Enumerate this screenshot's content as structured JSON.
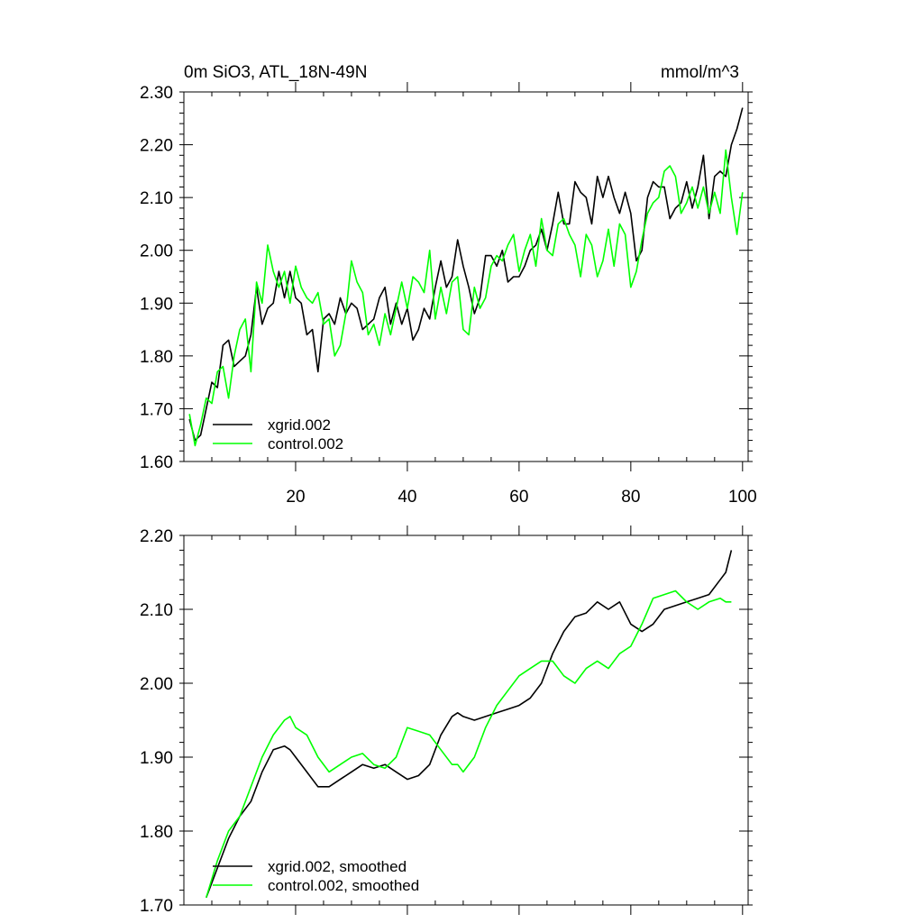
{
  "chart_data": [
    {
      "type": "line",
      "title": "0m SiO3, ATL_18N-49N",
      "units": "mmol/m^3",
      "xlabel": "",
      "ylabel": "",
      "xlim": [
        0,
        101
      ],
      "ylim": [
        1.6,
        2.3
      ],
      "xticks": [
        20,
        40,
        60,
        80,
        100
      ],
      "xtick_labels": [
        "20",
        "40",
        "60",
        "80",
        "100"
      ],
      "yticks": [
        1.6,
        1.7,
        1.8,
        1.9,
        2.0,
        2.1,
        2.2,
        2.3
      ],
      "ytick_labels": [
        "1.60",
        "1.70",
        "1.80",
        "1.90",
        "2.00",
        "2.10",
        "2.20",
        "2.30"
      ],
      "legend_position": "bottom-left",
      "series": [
        {
          "name": "xgrid.002",
          "color": "#000000",
          "x": [
            1,
            2,
            3,
            4,
            5,
            6,
            7,
            8,
            9,
            10,
            11,
            12,
            13,
            14,
            15,
            16,
            17,
            18,
            19,
            20,
            21,
            22,
            23,
            24,
            25,
            26,
            27,
            28,
            29,
            30,
            31,
            32,
            33,
            34,
            35,
            36,
            37,
            38,
            39,
            40,
            41,
            42,
            43,
            44,
            45,
            46,
            47,
            48,
            49,
            50,
            51,
            52,
            53,
            54,
            55,
            56,
            57,
            58,
            59,
            60,
            61,
            62,
            63,
            64,
            65,
            66,
            67,
            68,
            69,
            70,
            71,
            72,
            73,
            74,
            75,
            76,
            77,
            78,
            79,
            80,
            81,
            82,
            83,
            84,
            85,
            86,
            87,
            88,
            89,
            90,
            91,
            92,
            93,
            94,
            95,
            96,
            97,
            98,
            99,
            100
          ],
          "values": [
            1.68,
            1.64,
            1.65,
            1.7,
            1.75,
            1.74,
            1.82,
            1.83,
            1.78,
            1.79,
            1.8,
            1.84,
            1.93,
            1.86,
            1.89,
            1.9,
            1.96,
            1.91,
            1.96,
            1.91,
            1.9,
            1.84,
            1.85,
            1.77,
            1.87,
            1.88,
            1.86,
            1.91,
            1.88,
            1.9,
            1.89,
            1.85,
            1.86,
            1.87,
            1.91,
            1.93,
            1.86,
            1.9,
            1.86,
            1.89,
            1.83,
            1.85,
            1.89,
            1.87,
            1.93,
            1.98,
            1.93,
            1.95,
            2.02,
            1.97,
            1.93,
            1.88,
            1.91,
            1.99,
            1.99,
            1.97,
            2.0,
            1.94,
            1.95,
            1.95,
            1.97,
            2.0,
            2.01,
            2.04,
            2.0,
            2.05,
            2.11,
            2.05,
            2.05,
            2.13,
            2.11,
            2.1,
            2.05,
            2.14,
            2.1,
            2.14,
            2.1,
            2.07,
            2.11,
            2.07,
            1.98,
            2.0,
            2.1,
            2.13,
            2.12,
            2.12,
            2.06,
            2.08,
            2.09,
            2.13,
            2.08,
            2.12,
            2.18,
            2.06,
            2.14,
            2.15,
            2.14,
            2.2,
            2.23,
            2.27
          ]
        },
        {
          "name": "control.002",
          "color": "#00ff00",
          "x": [
            1,
            2,
            3,
            4,
            5,
            6,
            7,
            8,
            9,
            10,
            11,
            12,
            13,
            14,
            15,
            16,
            17,
            18,
            19,
            20,
            21,
            22,
            23,
            24,
            25,
            26,
            27,
            28,
            29,
            30,
            31,
            32,
            33,
            34,
            35,
            36,
            37,
            38,
            39,
            40,
            41,
            42,
            43,
            44,
            45,
            46,
            47,
            48,
            49,
            50,
            51,
            52,
            53,
            54,
            55,
            56,
            57,
            58,
            59,
            60,
            61,
            62,
            63,
            64,
            65,
            66,
            67,
            68,
            69,
            70,
            71,
            72,
            73,
            74,
            75,
            76,
            77,
            78,
            79,
            80,
            81,
            82,
            83,
            84,
            85,
            86,
            87,
            88,
            89,
            90,
            91,
            92,
            93,
            94,
            95,
            96,
            97,
            98,
            99,
            100
          ],
          "values": [
            1.69,
            1.63,
            1.67,
            1.72,
            1.71,
            1.77,
            1.78,
            1.72,
            1.8,
            1.85,
            1.87,
            1.77,
            1.94,
            1.9,
            2.01,
            1.96,
            1.93,
            1.96,
            1.9,
            1.97,
            1.93,
            1.91,
            1.9,
            1.92,
            1.86,
            1.87,
            1.8,
            1.82,
            1.88,
            1.98,
            1.94,
            1.92,
            1.84,
            1.86,
            1.82,
            1.88,
            1.84,
            1.89,
            1.94,
            1.89,
            1.95,
            1.94,
            1.92,
            2.0,
            1.87,
            1.93,
            1.88,
            1.94,
            1.95,
            1.85,
            1.84,
            1.93,
            1.89,
            1.91,
            1.97,
            1.99,
            1.98,
            2.01,
            2.03,
            1.96,
            2.0,
            2.03,
            1.97,
            2.06,
            2.0,
            1.99,
            2.05,
            2.06,
            2.03,
            2.01,
            1.95,
            2.03,
            2.01,
            1.95,
            1.98,
            2.04,
            1.97,
            2.05,
            2.03,
            1.93,
            1.96,
            2.02,
            2.07,
            2.09,
            2.1,
            2.15,
            2.16,
            2.14,
            2.07,
            2.09,
            2.12,
            2.08,
            2.12,
            2.07,
            2.11,
            2.07,
            2.19,
            2.1,
            2.03,
            2.11
          ]
        }
      ]
    },
    {
      "type": "line",
      "title": "",
      "xlabel": "",
      "ylabel": "",
      "xlim": [
        0,
        101
      ],
      "ylim": [
        1.7,
        2.2
      ],
      "xticks": [
        20,
        40,
        60,
        80,
        100
      ],
      "yticks": [
        1.7,
        1.8,
        1.9,
        2.0,
        2.1,
        2.2
      ],
      "ytick_labels": [
        "1.70",
        "1.80",
        "1.90",
        "2.00",
        "2.10",
        "2.20"
      ],
      "legend_position": "bottom-left",
      "series": [
        {
          "name": "xgrid.002, smoothed",
          "color": "#000000",
          "x": [
            4,
            6,
            8,
            10,
            11,
            12,
            14,
            16,
            18,
            19,
            20,
            22,
            24,
            26,
            28,
            30,
            32,
            34,
            36,
            38,
            40,
            42,
            44,
            46,
            48,
            49,
            50,
            52,
            54,
            56,
            58,
            60,
            62,
            64,
            65,
            66,
            68,
            70,
            72,
            74,
            76,
            78,
            80,
            82,
            84,
            86,
            88,
            90,
            92,
            94,
            96,
            97,
            98
          ],
          "values": [
            1.71,
            1.75,
            1.79,
            1.82,
            1.83,
            1.84,
            1.88,
            1.91,
            1.915,
            1.91,
            1.9,
            1.88,
            1.86,
            1.86,
            1.87,
            1.88,
            1.89,
            1.885,
            1.89,
            1.88,
            1.87,
            1.875,
            1.89,
            1.93,
            1.955,
            1.96,
            1.955,
            1.95,
            1.955,
            1.96,
            1.965,
            1.97,
            1.98,
            2.0,
            2.02,
            2.04,
            2.07,
            2.09,
            2.095,
            2.11,
            2.1,
            2.11,
            2.08,
            2.07,
            2.08,
            2.1,
            2.105,
            2.11,
            2.115,
            2.12,
            2.14,
            2.15,
            2.18
          ]
        },
        {
          "name": "control.002, smoothed",
          "color": "#00ff00",
          "x": [
            4,
            6,
            8,
            10,
            12,
            14,
            16,
            18,
            19,
            20,
            22,
            24,
            26,
            28,
            30,
            32,
            34,
            36,
            38,
            40,
            42,
            44,
            46,
            48,
            49,
            50,
            52,
            54,
            56,
            58,
            60,
            62,
            64,
            66,
            68,
            70,
            72,
            74,
            76,
            78,
            80,
            82,
            84,
            86,
            88,
            90,
            92,
            94,
            96,
            97,
            98
          ],
          "values": [
            1.71,
            1.76,
            1.8,
            1.82,
            1.86,
            1.9,
            1.93,
            1.95,
            1.955,
            1.94,
            1.93,
            1.9,
            1.88,
            1.89,
            1.9,
            1.905,
            1.89,
            1.885,
            1.9,
            1.94,
            1.935,
            1.93,
            1.91,
            1.89,
            1.89,
            1.88,
            1.9,
            1.94,
            1.97,
            1.99,
            2.01,
            2.02,
            2.03,
            2.03,
            2.01,
            2.0,
            2.02,
            2.03,
            2.02,
            2.04,
            2.05,
            2.08,
            2.115,
            2.12,
            2.125,
            2.11,
            2.1,
            2.11,
            2.115,
            2.11,
            2.11
          ]
        }
      ]
    }
  ]
}
